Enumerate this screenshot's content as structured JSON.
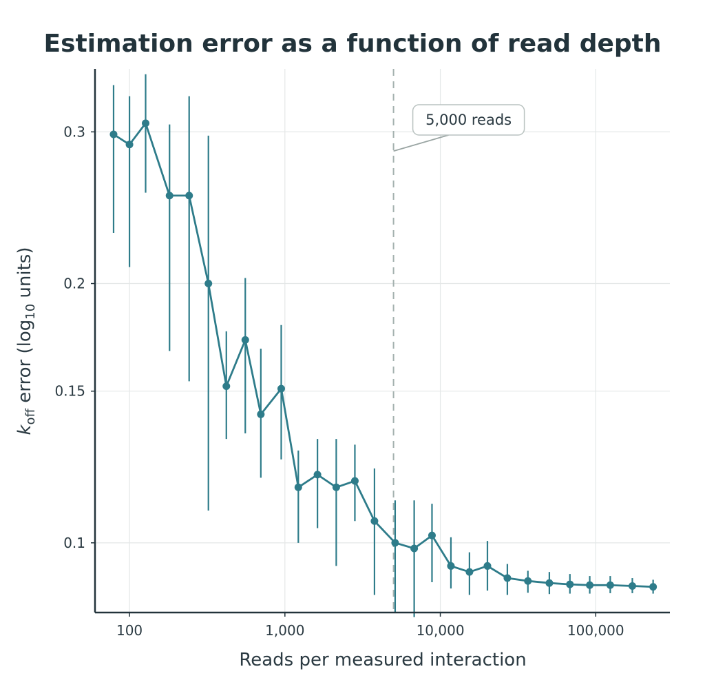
{
  "chart_data": {
    "type": "line",
    "title": "Estimation error as a function of read depth",
    "xlabel": "Reads per measured interaction",
    "ylabel_parts": [
      "k",
      "off",
      " error (log",
      "10",
      " units)"
    ],
    "x_scale": "log",
    "y_scale": "log",
    "xlim": [
      60,
      300000
    ],
    "ylim": [
      0.083,
      0.355
    ],
    "x_ticks": [
      100,
      1000,
      10000,
      100000
    ],
    "x_tick_labels": [
      "100",
      "1,000",
      "10,000",
      "100,000"
    ],
    "y_ticks": [
      0.1,
      0.15,
      0.2,
      0.3
    ],
    "y_tick_labels": [
      "0.1",
      "0.15",
      "0.2",
      "0.3"
    ],
    "grid": true,
    "legend": "none",
    "series": [
      {
        "color": "#2e7c8a",
        "points": [
          {
            "x": 79,
            "y": 0.298,
            "lo": 0.229,
            "hi": 0.34
          },
          {
            "x": 100,
            "y": 0.29,
            "lo": 0.209,
            "hi": 0.33
          },
          {
            "x": 127,
            "y": 0.307,
            "lo": 0.255,
            "hi": 0.35
          },
          {
            "x": 181,
            "y": 0.253,
            "lo": 0.167,
            "hi": 0.306
          },
          {
            "x": 242,
            "y": 0.253,
            "lo": 0.154,
            "hi": 0.33
          },
          {
            "x": 322,
            "y": 0.2,
            "lo": 0.109,
            "hi": 0.297
          },
          {
            "x": 420,
            "y": 0.152,
            "lo": 0.132,
            "hi": 0.176
          },
          {
            "x": 556,
            "y": 0.172,
            "lo": 0.134,
            "hi": 0.203
          },
          {
            "x": 700,
            "y": 0.141,
            "lo": 0.119,
            "hi": 0.168
          },
          {
            "x": 947,
            "y": 0.151,
            "lo": 0.125,
            "hi": 0.179
          },
          {
            "x": 1220,
            "y": 0.116,
            "lo": 0.1,
            "hi": 0.128
          },
          {
            "x": 1620,
            "y": 0.12,
            "lo": 0.104,
            "hi": 0.132
          },
          {
            "x": 2140,
            "y": 0.116,
            "lo": 0.094,
            "hi": 0.132
          },
          {
            "x": 2820,
            "y": 0.118,
            "lo": 0.106,
            "hi": 0.13
          },
          {
            "x": 3770,
            "y": 0.106,
            "lo": 0.087,
            "hi": 0.122
          },
          {
            "x": 5120,
            "y": 0.1,
            "lo": 0.083,
            "hi": 0.112
          },
          {
            "x": 6790,
            "y": 0.0985,
            "lo": 0.082,
            "hi": 0.112
          },
          {
            "x": 8840,
            "y": 0.102,
            "lo": 0.09,
            "hi": 0.111
          },
          {
            "x": 11700,
            "y": 0.094,
            "lo": 0.0885,
            "hi": 0.1015
          },
          {
            "x": 15400,
            "y": 0.0925,
            "lo": 0.087,
            "hi": 0.0975
          },
          {
            "x": 20100,
            "y": 0.094,
            "lo": 0.088,
            "hi": 0.1005
          },
          {
            "x": 27000,
            "y": 0.091,
            "lo": 0.087,
            "hi": 0.0945
          },
          {
            "x": 36600,
            "y": 0.0903,
            "lo": 0.0875,
            "hi": 0.0928
          },
          {
            "x": 50300,
            "y": 0.0898,
            "lo": 0.0872,
            "hi": 0.0925
          },
          {
            "x": 68200,
            "y": 0.0895,
            "lo": 0.0873,
            "hi": 0.092
          },
          {
            "x": 91500,
            "y": 0.0893,
            "lo": 0.0873,
            "hi": 0.0915
          },
          {
            "x": 124000,
            "y": 0.0893,
            "lo": 0.0874,
            "hi": 0.0915
          },
          {
            "x": 172000,
            "y": 0.0891,
            "lo": 0.0874,
            "hi": 0.091
          },
          {
            "x": 234000,
            "y": 0.0889,
            "lo": 0.0873,
            "hi": 0.0906
          }
        ]
      }
    ],
    "reference_line": {
      "x": 5000,
      "style": "dashed",
      "color": "#a3b0ae"
    },
    "annotation": {
      "text": "5,000 reads",
      "x": 5000,
      "y": 0.285
    }
  }
}
